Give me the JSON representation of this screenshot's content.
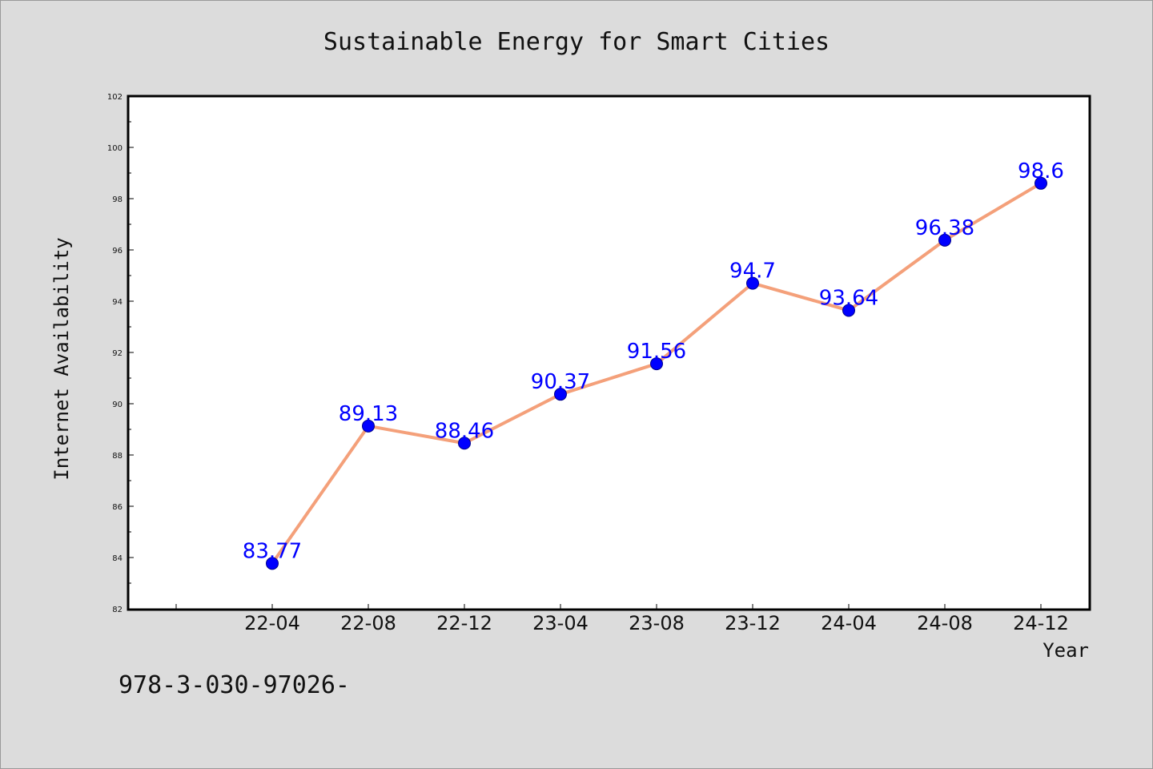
{
  "chart_data": {
    "type": "line",
    "title": "Sustainable Energy for Smart Cities",
    "xlabel": "Year",
    "ylabel": "Internet Availability",
    "categories": [
      "22-04",
      "22-08",
      "22-12",
      "23-04",
      "23-08",
      "23-12",
      "24-04",
      "24-08",
      "24-12"
    ],
    "values": [
      83.77,
      89.13,
      88.46,
      90.37,
      91.56,
      94.7,
      93.64,
      96.38,
      98.6
    ],
    "value_labels": [
      "83.77",
      "89.13",
      "88.46",
      "90.37",
      "91.56",
      "94.7",
      "93.64",
      "96.38",
      "98.6"
    ],
    "ylim": [
      82,
      102
    ],
    "yticks": [
      82,
      84,
      86,
      88,
      90,
      92,
      94,
      96,
      98,
      100,
      102
    ],
    "grid": false,
    "colors": {
      "line": "#f4a07a",
      "marker": "#0000ff",
      "labels": "#0000ff"
    }
  },
  "footer": {
    "text": "978-3-030-97026-"
  }
}
